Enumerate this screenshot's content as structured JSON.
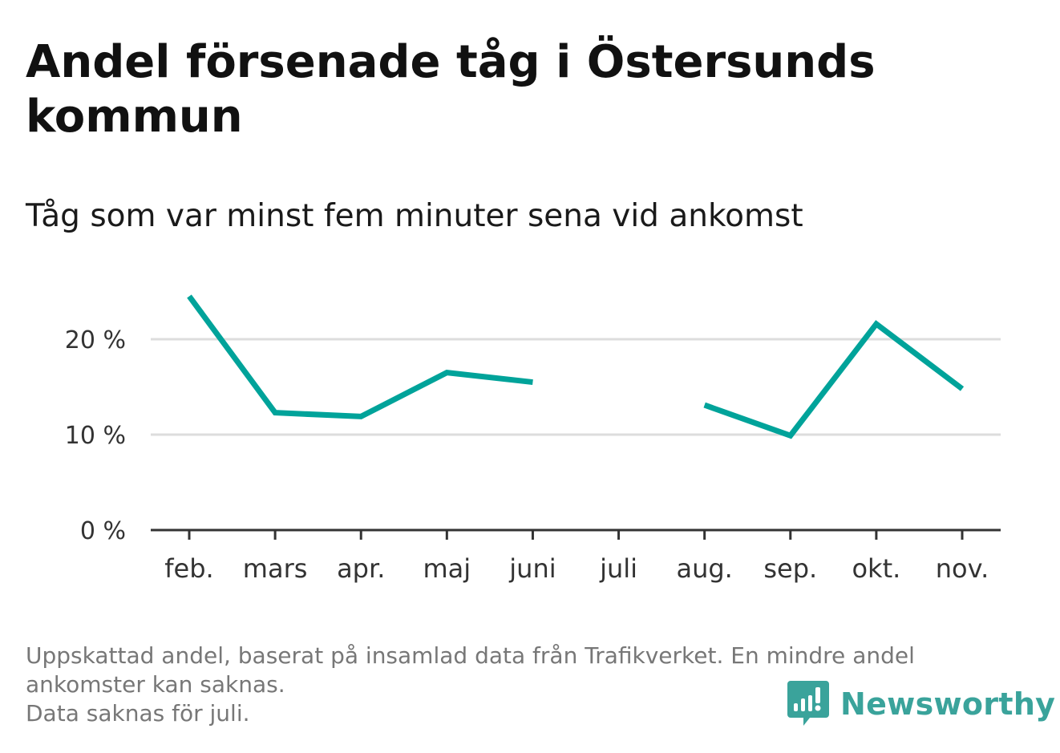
{
  "title": "Andel försenade tåg i Östersunds kommun",
  "subtitle": "Tåg som var minst fem minuter sena vid ankomst",
  "footnote": {
    "line1": "Uppskattad andel, baserat på insamlad data från Trafikverket. En mindre andel ankomster kan saknas.",
    "line2": "Data saknas för juli."
  },
  "brand": {
    "name": "Newsworthy",
    "icon": "newsworthy-logo-icon"
  },
  "colors": {
    "line": "#00a39a",
    "grid": "#dddddd",
    "axis": "#333333",
    "brand": "#3aa39b"
  },
  "chart_data": {
    "type": "line",
    "categories": [
      "feb.",
      "mars",
      "apr.",
      "maj",
      "juni",
      "juli",
      "aug.",
      "sep.",
      "okt.",
      "nov."
    ],
    "series": [
      {
        "values": [
          24.5,
          12.3,
          11.9,
          16.5,
          15.5,
          null,
          13.1,
          9.9,
          21.6,
          14.8
        ]
      }
    ],
    "y_ticks": [
      0,
      10,
      20
    ],
    "y_tick_labels": [
      "0 %",
      "10 %",
      "20 %"
    ],
    "ylim": [
      0,
      25
    ],
    "xlabel": "",
    "ylabel": "",
    "grid": true,
    "legend": "none"
  }
}
